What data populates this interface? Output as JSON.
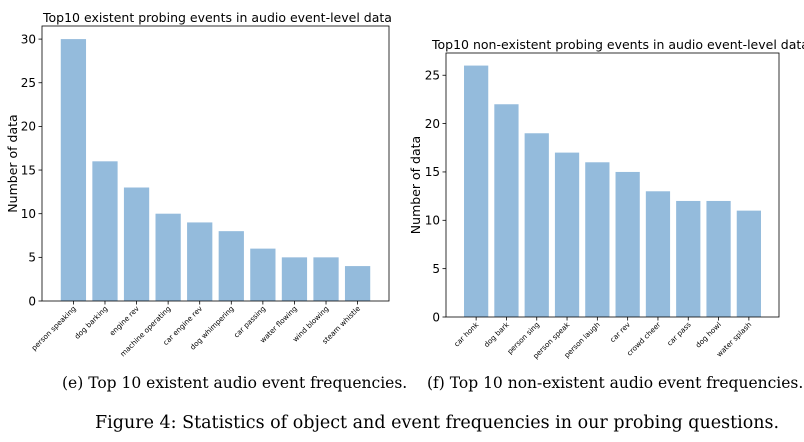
{
  "chart_data": [
    {
      "type": "bar",
      "title": "Top10 existent probing events in audio event-level data",
      "xlabel": "",
      "ylabel": "Number of data",
      "categories": [
        "person speaking",
        "dog barking",
        "engine rev",
        "machine operating",
        "car engine rev",
        "dog whimpering",
        "car passing",
        "water flowing",
        "wind blowing",
        "steam whistle"
      ],
      "values": [
        30,
        16,
        13,
        10,
        9,
        8,
        6,
        5,
        5,
        4
      ],
      "ylim": [
        0,
        31.5
      ],
      "yticks": [
        0,
        5,
        10,
        15,
        20,
        25,
        30
      ],
      "grid": false,
      "bar_color": "#94bbdc"
    },
    {
      "type": "bar",
      "title": "Top10 non-existent probing events in audio event-level data",
      "xlabel": "",
      "ylabel": "Number of data",
      "categories": [
        "car honk",
        "dog bark",
        "person sing",
        "person speak",
        "person laugh",
        "car rev",
        "crowd cheer",
        "car pass",
        "dog howl",
        "water splash"
      ],
      "values": [
        26,
        22,
        19,
        17,
        16,
        15,
        13,
        12,
        12,
        11
      ],
      "ylim": [
        0,
        27.3
      ],
      "yticks": [
        0,
        5,
        10,
        15,
        20,
        25
      ],
      "grid": false,
      "bar_color": "#94bbdc"
    }
  ],
  "captions": {
    "left": "(e) Top 10 existent audio event frequencies.",
    "right": "(f) Top 10 non-existent audio event frequencies.",
    "figure": "Figure 4: Statistics of object and event frequencies in our probing questions."
  }
}
